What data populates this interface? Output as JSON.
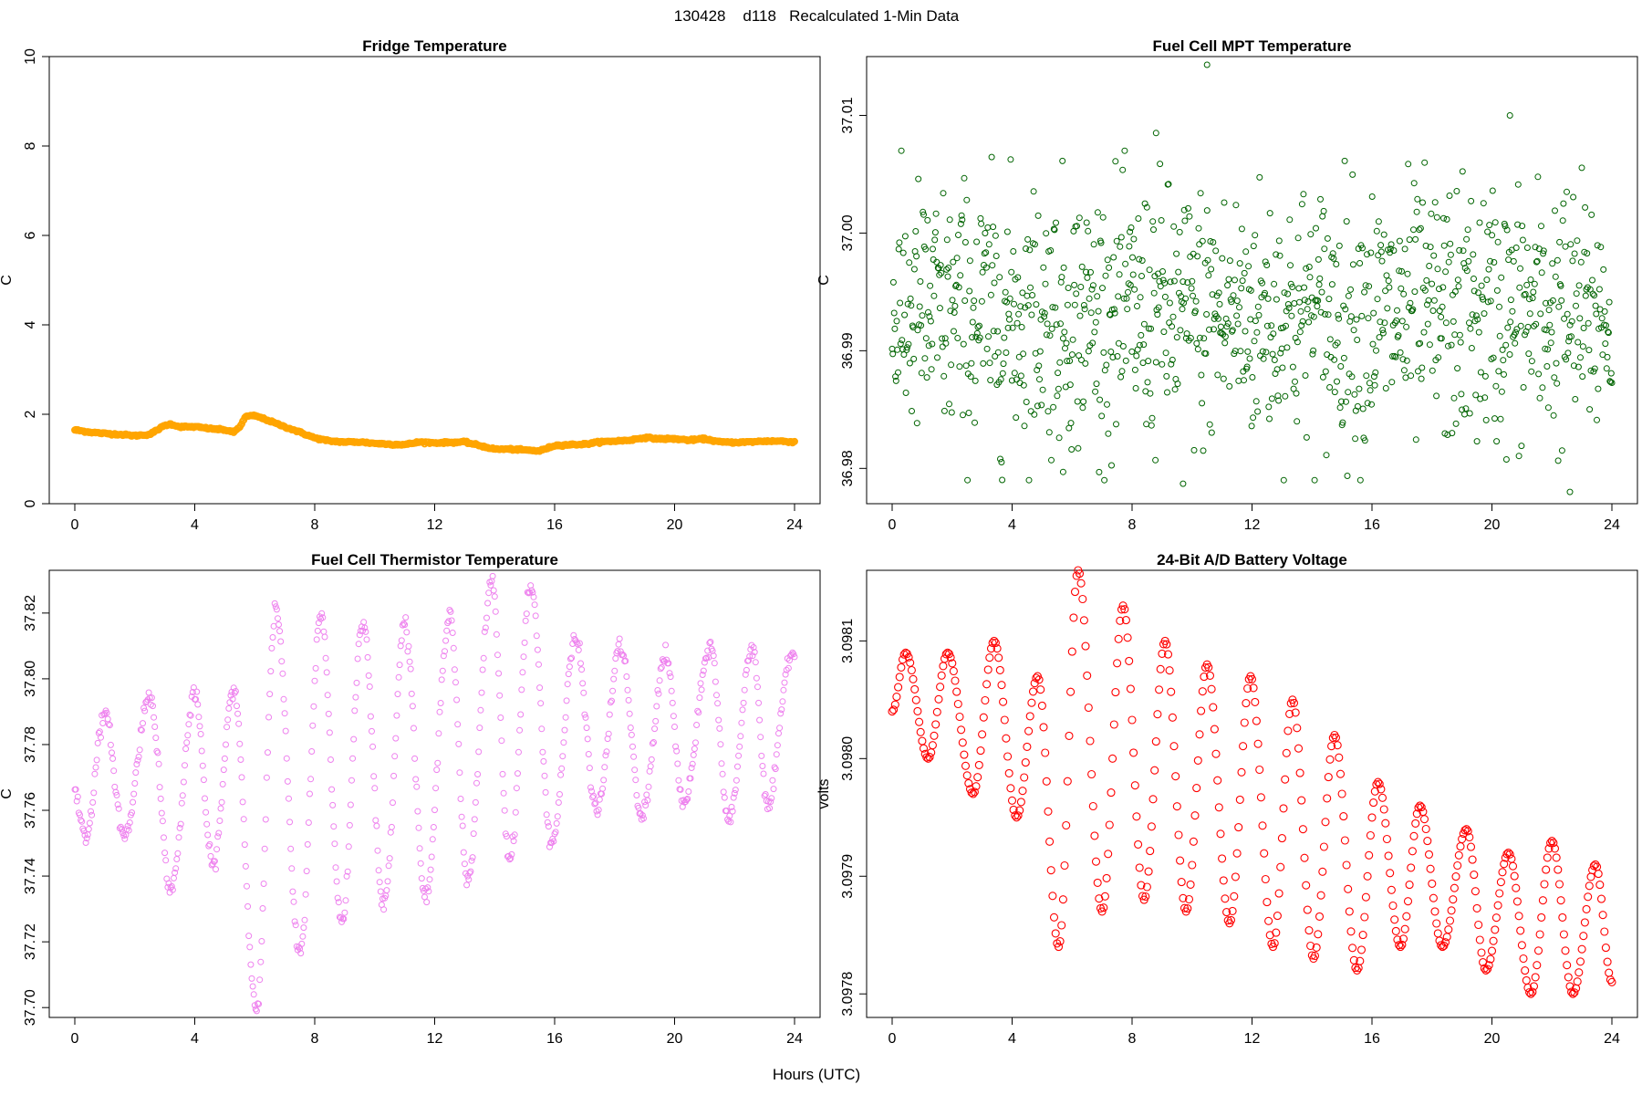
{
  "figure": {
    "title": "130428    d118   Recalculated 1-Min Data",
    "xlabel": "Hours (UTC)"
  },
  "chart_data": [
    {
      "id": "fridge",
      "type": "line",
      "title": "Fridge Temperature",
      "xlabel": "Hours (UTC)",
      "ylabel": "C",
      "xlim": [
        0,
        24
      ],
      "ylim": [
        0,
        10
      ],
      "xticks": [
        0,
        4,
        8,
        12,
        16,
        20,
        24
      ],
      "yticks": [
        0,
        2,
        4,
        6,
        8,
        10
      ],
      "ytick_labels": [
        "0",
        "2",
        "4",
        "6",
        "8",
        "10"
      ],
      "color": "#FFA500",
      "x": [
        0,
        0.5,
        1,
        1.5,
        2,
        2.5,
        3,
        3.2,
        3.5,
        4,
        4.5,
        5,
        5.3,
        5.5,
        5.7,
        6,
        6.3,
        7,
        7.5,
        8,
        8.5,
        9,
        9.5,
        10,
        10.5,
        11,
        11.5,
        12,
        12.5,
        13,
        13.5,
        14,
        14.5,
        15,
        15.5,
        16,
        16.5,
        17,
        17.5,
        18,
        18.5,
        19,
        19.5,
        20,
        20.5,
        21,
        21.5,
        22,
        22.5,
        23,
        23.5,
        24
      ],
      "values": [
        1.65,
        1.6,
        1.57,
        1.55,
        1.52,
        1.55,
        1.75,
        1.78,
        1.72,
        1.72,
        1.68,
        1.65,
        1.6,
        1.72,
        1.95,
        1.97,
        1.9,
        1.72,
        1.6,
        1.47,
        1.4,
        1.38,
        1.38,
        1.35,
        1.33,
        1.32,
        1.38,
        1.36,
        1.37,
        1.38,
        1.3,
        1.22,
        1.22,
        1.2,
        1.18,
        1.3,
        1.32,
        1.33,
        1.38,
        1.4,
        1.42,
        1.48,
        1.45,
        1.45,
        1.42,
        1.45,
        1.38,
        1.37,
        1.38,
        1.4,
        1.4,
        1.38
      ]
    },
    {
      "id": "mpt",
      "type": "scatter",
      "title": "Fuel Cell MPT Temperature",
      "xlabel": "Hours (UTC)",
      "ylabel": "C",
      "xlim": [
        0,
        24
      ],
      "ylim": [
        36.977,
        37.015
      ],
      "xticks": [
        0,
        4,
        8,
        12,
        16,
        20,
        24
      ],
      "yticks": [
        36.98,
        36.99,
        37.0,
        37.01
      ],
      "ytick_labels": [
        "36.98",
        "36.99",
        "37.00",
        "37.01"
      ],
      "color": "#006400",
      "marker": "open-circle",
      "mean": 36.993,
      "spread": 0.0055,
      "n_points": 1100,
      "outliers": [
        [
          10.5,
          37.0143
        ],
        [
          20.6,
          37.01
        ],
        [
          8.8,
          37.0085
        ],
        [
          22.6,
          36.978
        ],
        [
          9.7,
          36.9787
        ],
        [
          5.7,
          36.9797
        ]
      ]
    },
    {
      "id": "thermistor",
      "type": "scatter",
      "title": "Fuel Cell Thermistor Temperature",
      "xlabel": "Hours (UTC)",
      "ylabel": "C",
      "xlim": [
        0,
        24
      ],
      "ylim": [
        37.697,
        37.833
      ],
      "xticks": [
        0,
        4,
        8,
        12,
        16,
        20,
        24
      ],
      "yticks": [
        37.7,
        37.72,
        37.74,
        37.76,
        37.78,
        37.8,
        37.82
      ],
      "ytick_labels": [
        "37.70",
        "37.72",
        "37.74",
        "37.76",
        "37.78",
        "37.80",
        "37.82"
      ],
      "color": "#EE82EE",
      "marker": "open-circle",
      "peaks": [
        [
          0.0,
          37.765
        ],
        [
          1.0,
          37.789
        ],
        [
          2.5,
          37.795
        ],
        [
          4.0,
          37.795
        ],
        [
          5.3,
          37.797
        ],
        [
          6.7,
          37.821
        ],
        [
          8.2,
          37.819
        ],
        [
          9.6,
          37.818
        ],
        [
          11.0,
          37.817
        ],
        [
          12.5,
          37.82
        ],
        [
          13.9,
          37.83
        ],
        [
          15.2,
          37.828
        ],
        [
          16.7,
          37.812
        ],
        [
          18.2,
          37.81
        ],
        [
          19.7,
          37.807
        ],
        [
          21.2,
          37.81
        ],
        [
          22.6,
          37.81
        ],
        [
          23.9,
          37.808
        ]
      ],
      "troughs": [
        [
          0.35,
          37.752
        ],
        [
          1.65,
          37.752
        ],
        [
          3.2,
          37.736
        ],
        [
          4.6,
          37.743
        ],
        [
          6.05,
          37.7
        ],
        [
          7.5,
          37.716
        ],
        [
          8.9,
          37.726
        ],
        [
          10.3,
          37.731
        ],
        [
          11.7,
          37.733
        ],
        [
          13.1,
          37.738
        ],
        [
          14.5,
          37.745
        ],
        [
          15.9,
          37.75
        ],
        [
          17.4,
          37.76
        ],
        [
          18.9,
          37.758
        ],
        [
          20.3,
          37.762
        ],
        [
          21.8,
          37.757
        ],
        [
          23.1,
          37.761
        ]
      ]
    },
    {
      "id": "battery",
      "type": "scatter",
      "title": "24-Bit A/D Battery Voltage",
      "xlabel": "Hours (UTC)",
      "ylabel": "volts",
      "xlim": [
        0,
        24
      ],
      "ylim": [
        3.09778,
        3.09816
      ],
      "xticks": [
        0,
        4,
        8,
        12,
        16,
        20,
        24
      ],
      "yticks": [
        3.0978,
        3.0979,
        3.098,
        3.0981
      ],
      "ytick_labels": [
        "3.0978",
        "3.0979",
        "3.0980",
        "3.0981"
      ],
      "color": "#FF0000",
      "marker": "open-circle",
      "start": [
        0,
        3.09804
      ],
      "end": [
        24,
        3.09781
      ],
      "peaks": [
        [
          0.45,
          3.09809
        ],
        [
          1.85,
          3.09809
        ],
        [
          3.4,
          3.0981
        ],
        [
          4.85,
          3.09807
        ],
        [
          6.2,
          3.09816
        ],
        [
          7.7,
          3.09813
        ],
        [
          9.1,
          3.0981
        ],
        [
          10.5,
          3.09808
        ],
        [
          11.95,
          3.09807
        ],
        [
          13.35,
          3.09805
        ],
        [
          14.75,
          3.09802
        ],
        [
          16.2,
          3.09798
        ],
        [
          17.6,
          3.09796
        ],
        [
          19.15,
          3.09794
        ],
        [
          20.55,
          3.09792
        ],
        [
          22.0,
          3.09793
        ],
        [
          23.45,
          3.09791
        ]
      ],
      "troughs": [
        [
          1.2,
          3.098
        ],
        [
          2.7,
          3.09797
        ],
        [
          4.15,
          3.09795
        ],
        [
          5.55,
          3.09784
        ],
        [
          7.0,
          3.09787
        ],
        [
          8.4,
          3.09788
        ],
        [
          9.8,
          3.09787
        ],
        [
          11.25,
          3.09786
        ],
        [
          12.7,
          3.09784
        ],
        [
          14.05,
          3.09783
        ],
        [
          15.5,
          3.09782
        ],
        [
          16.95,
          3.09784
        ],
        [
          18.35,
          3.09784
        ],
        [
          19.8,
          3.09782
        ],
        [
          21.3,
          3.0978
        ],
        [
          22.7,
          3.0978
        ]
      ]
    }
  ]
}
